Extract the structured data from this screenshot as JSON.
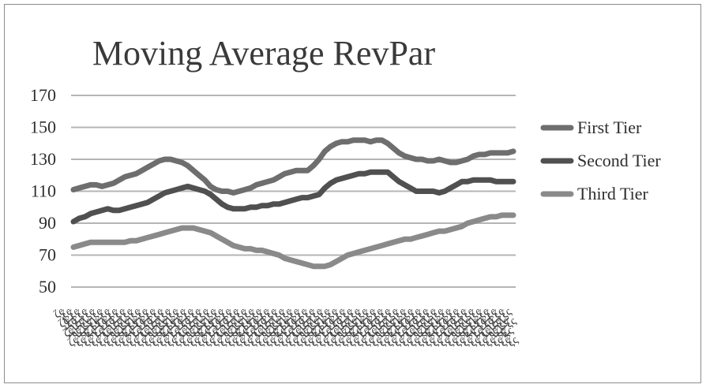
{
  "chart_data": {
    "type": "line",
    "title": "Moving Average RevPar",
    "xlabel": "",
    "ylabel": "",
    "ylim": [
      50,
      170
    ],
    "y_ticks": [
      170,
      150,
      130,
      110,
      90,
      70,
      50
    ],
    "grid": true,
    "legend_position": "right",
    "x_tick_labels_legible": false,
    "series": [
      {
        "name": "First Tier",
        "color": "#6e6e6e",
        "values": [
          111,
          112,
          113,
          114,
          114,
          113,
          114,
          115,
          117,
          119,
          120,
          121,
          123,
          125,
          127,
          129,
          130,
          130,
          129,
          128,
          126,
          123,
          120,
          117,
          113,
          111,
          110,
          110,
          109,
          110,
          111,
          112,
          114,
          115,
          116,
          117,
          119,
          121,
          122,
          123,
          123,
          123,
          126,
          130,
          135,
          138,
          140,
          141,
          141,
          142,
          142,
          142,
          141,
          142,
          142,
          140,
          137,
          134,
          132,
          131,
          130,
          130,
          129,
          129,
          130,
          129,
          128,
          128,
          129,
          130,
          132,
          133,
          133,
          134,
          134,
          134,
          134,
          135
        ]
      },
      {
        "name": "Second Tier",
        "color": "#505050",
        "values": [
          91,
          93,
          94,
          96,
          97,
          98,
          99,
          98,
          98,
          99,
          100,
          101,
          102,
          103,
          105,
          107,
          109,
          110,
          111,
          112,
          113,
          112,
          111,
          110,
          108,
          105,
          102,
          100,
          99,
          99,
          99,
          100,
          100,
          101,
          101,
          102,
          102,
          103,
          104,
          105,
          106,
          106,
          107,
          108,
          112,
          115,
          117,
          118,
          119,
          120,
          121,
          121,
          122,
          122,
          122,
          122,
          119,
          116,
          114,
          112,
          110,
          110,
          110,
          110,
          109,
          110,
          112,
          114,
          116,
          116,
          117,
          117,
          117,
          117,
          116,
          116,
          116,
          116
        ]
      },
      {
        "name": "Third Tier",
        "color": "#8a8a8a",
        "values": [
          75,
          76,
          77,
          78,
          78,
          78,
          78,
          78,
          78,
          78,
          79,
          79,
          80,
          81,
          82,
          83,
          84,
          85,
          86,
          87,
          87,
          87,
          86,
          85,
          84,
          82,
          80,
          78,
          76,
          75,
          74,
          74,
          73,
          73,
          72,
          71,
          70,
          68,
          67,
          66,
          65,
          64,
          63,
          63,
          63,
          64,
          66,
          68,
          70,
          71,
          72,
          73,
          74,
          75,
          76,
          77,
          78,
          79,
          80,
          80,
          81,
          82,
          83,
          84,
          85,
          85,
          86,
          87,
          88,
          90,
          91,
          92,
          93,
          94,
          94,
          95,
          95,
          95
        ]
      }
    ]
  }
}
